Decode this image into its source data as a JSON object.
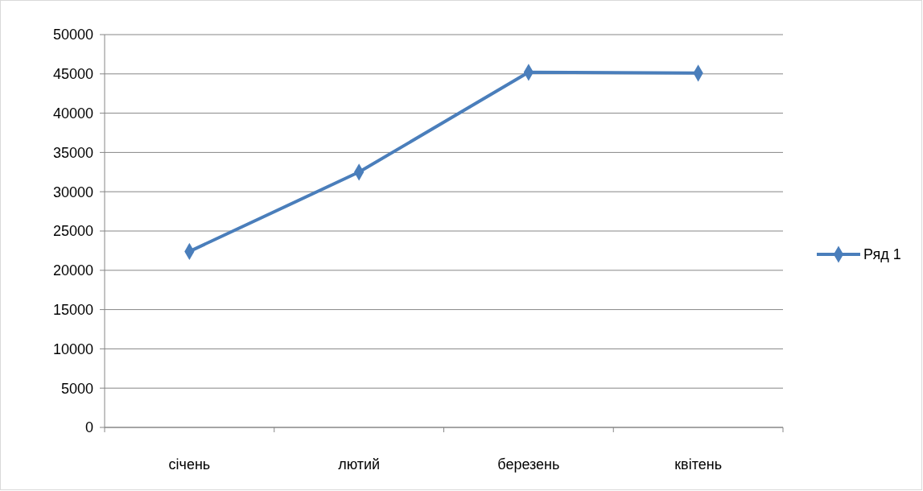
{
  "chart_data": {
    "type": "line",
    "categories": [
      "січень",
      "лютий",
      "березень",
      "квітень"
    ],
    "series": [
      {
        "name": "Ряд 1",
        "color": "#4a7ebb",
        "values": [
          22400,
          32500,
          45200,
          45100
        ]
      }
    ],
    "ylim": [
      0,
      50000
    ],
    "yticks": [
      0,
      5000,
      10000,
      15000,
      20000,
      25000,
      30000,
      35000,
      40000,
      45000,
      50000
    ],
    "grid": "y",
    "legend": "right",
    "marker": "diamond",
    "line_style": "solid"
  }
}
